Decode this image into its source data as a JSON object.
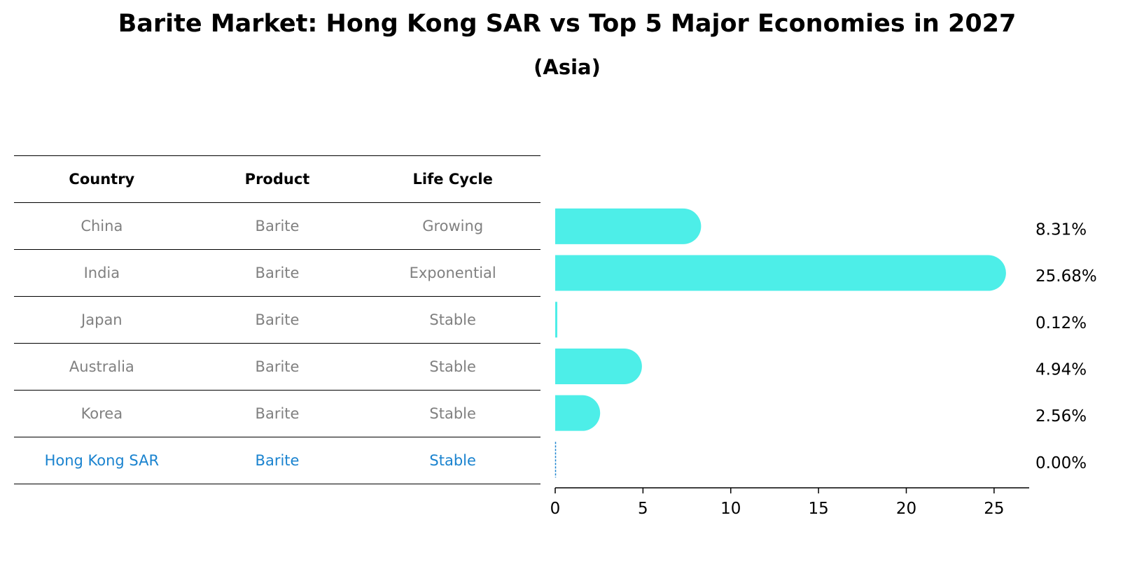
{
  "title": "Barite Market: Hong Kong SAR vs Top 5 Major Economies in 2027",
  "subtitle": "(Asia)",
  "table": {
    "headers": [
      "Country",
      "Product",
      "Life Cycle"
    ],
    "rows": [
      {
        "country": "China",
        "product": "Barite",
        "life_cycle": "Growing"
      },
      {
        "country": "India",
        "product": "Barite",
        "life_cycle": "Exponential"
      },
      {
        "country": "Japan",
        "product": "Barite",
        "life_cycle": "Stable"
      },
      {
        "country": "Australia",
        "product": "Barite",
        "life_cycle": "Stable"
      },
      {
        "country": "Korea",
        "product": "Barite",
        "life_cycle": "Stable"
      },
      {
        "country": "Hong Kong SAR",
        "product": "Barite",
        "life_cycle": "Stable"
      }
    ]
  },
  "chart_data": {
    "type": "bar",
    "orientation": "horizontal",
    "categories": [
      "China",
      "India",
      "Japan",
      "Australia",
      "Korea",
      "Hong Kong SAR"
    ],
    "values": [
      8.31,
      25.68,
      0.12,
      4.94,
      2.56,
      0.0
    ],
    "value_labels": [
      "8.31%",
      "25.68%",
      "0.12%",
      "4.94%",
      "2.56%",
      "0.00%"
    ],
    "xlim": [
      0,
      27
    ],
    "xticks": [
      0,
      5,
      10,
      15,
      20,
      25
    ],
    "bar_color": "#4deee8",
    "highlight_color": "#1a83cf",
    "highlight_category": "Hong Kong SAR"
  }
}
